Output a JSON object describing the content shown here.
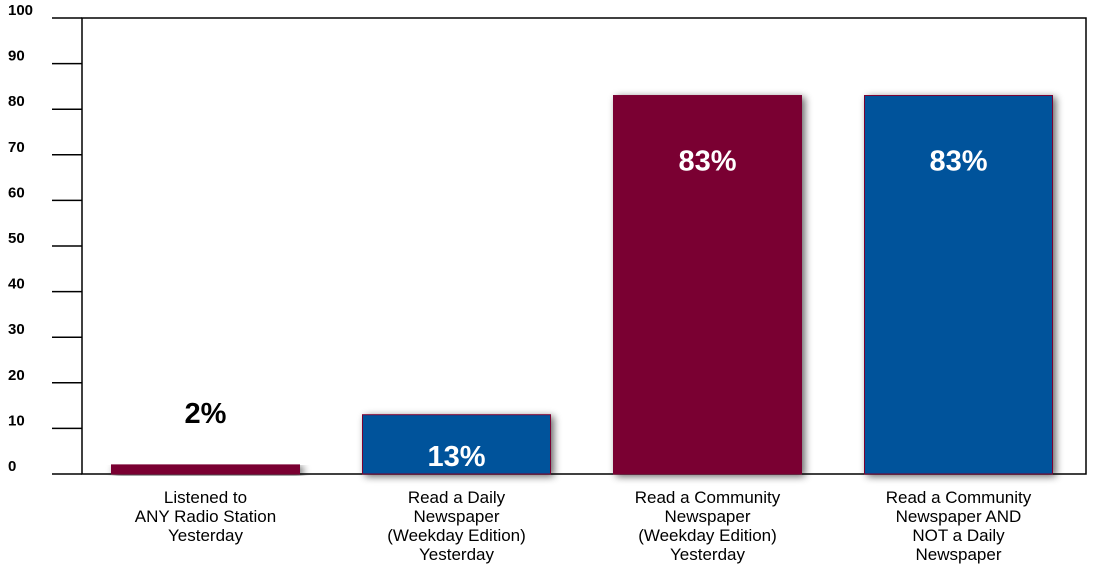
{
  "chart_data": {
    "type": "bar",
    "title": "",
    "xlabel": "",
    "ylabel": "",
    "ylim": [
      0,
      100
    ],
    "yticks": [
      "0",
      "10",
      "20",
      "30",
      "40",
      "50",
      "60",
      "70",
      "80",
      "90",
      "100"
    ],
    "grid": false,
    "categories": [
      [
        "Listened to",
        "ANY Radio Station",
        "Yesterday"
      ],
      [
        "Read a Daily",
        "Newspaper",
        "(Weekday Edition)",
        "Yesterday"
      ],
      [
        "Read a Community",
        "Newspaper",
        "(Weekday Edition)",
        "Yesterday"
      ],
      [
        "Read a Community",
        "Newspaper AND",
        "NOT a Daily",
        "Newspaper"
      ]
    ],
    "values": [
      2,
      13,
      83,
      83
    ],
    "value_labels": [
      "2%",
      "13%",
      "83%",
      "83%"
    ],
    "bar_colors": [
      "#7a0030",
      "#00539b",
      "#7a0030",
      "#00539b"
    ],
    "label_colors": [
      "#000000",
      "#ffffff",
      "#ffffff",
      "#ffffff"
    ]
  }
}
